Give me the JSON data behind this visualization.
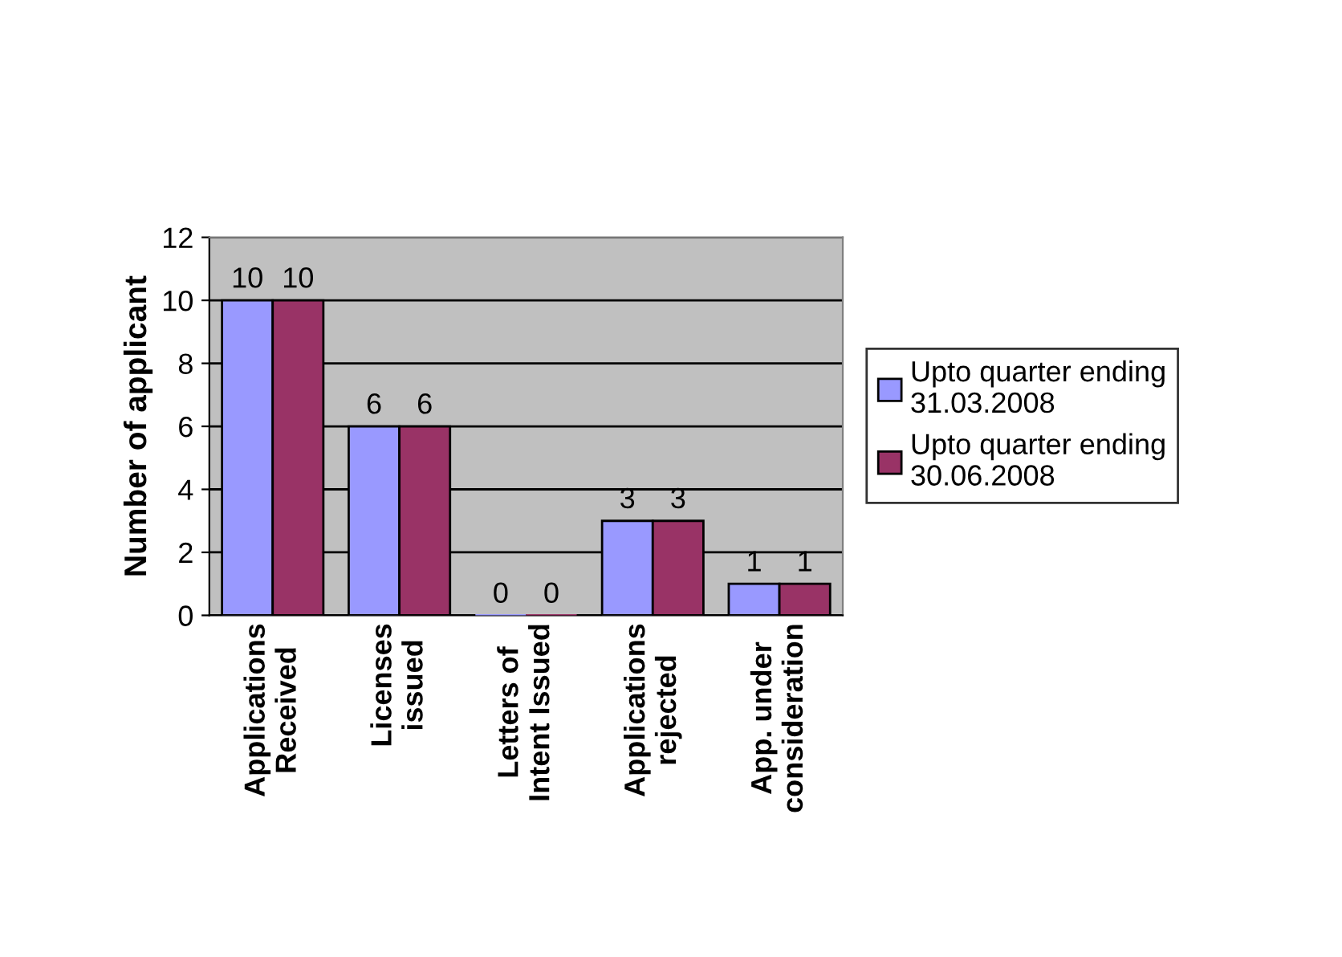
{
  "chart_data": {
    "type": "bar",
    "ylabel": "Number of applicant",
    "categories": [
      "Applications\nReceived",
      "Licenses\nissued",
      "Letters of\nIntent Issued",
      "Applications\nrejected",
      "App. under\nconsideration"
    ],
    "series": [
      {
        "name": "Upto quarter ending\n31.03.2008",
        "color": "#9999ff",
        "values": [
          10,
          6,
          0,
          3,
          1
        ]
      },
      {
        "name": "Upto quarter ending\n30.06.2008",
        "color": "#993366",
        "values": [
          10,
          6,
          0,
          3,
          1
        ]
      }
    ],
    "ylim": [
      0,
      12
    ],
    "yticks": [
      0,
      2,
      4,
      6,
      8,
      10,
      12
    ],
    "grid": "y",
    "legend": "right",
    "data_labels": true
  }
}
